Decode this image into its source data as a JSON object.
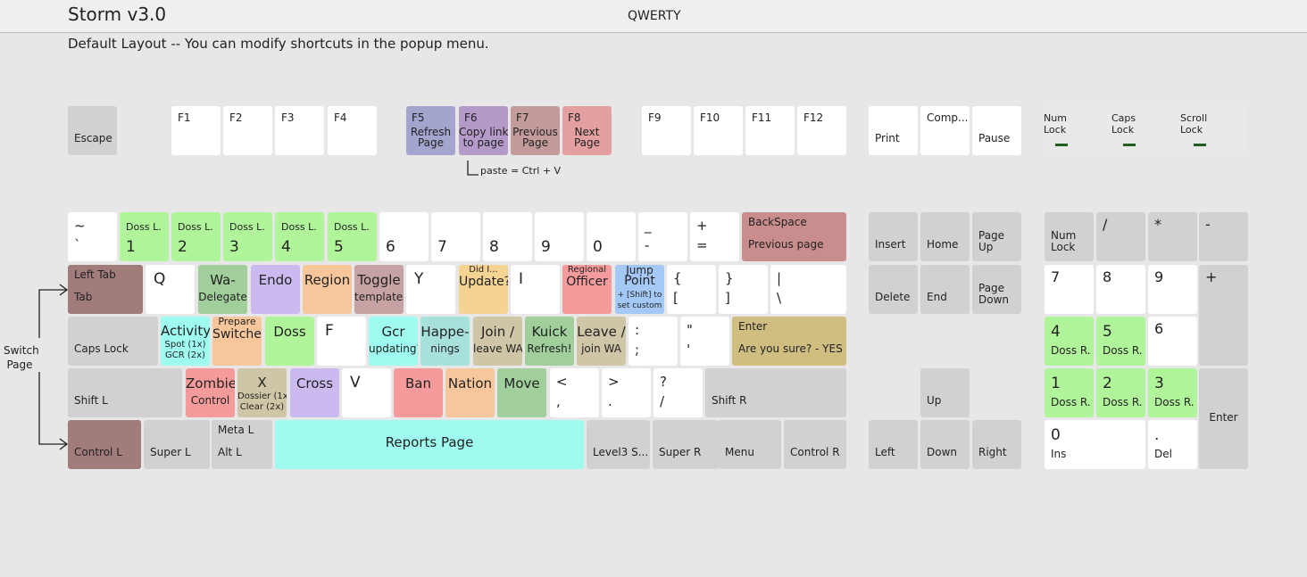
{
  "header": {
    "title": "Storm v3.0",
    "layout": "QWERTY",
    "subtitle": "Default Layout -- You can modify shortcuts in the popup menu."
  },
  "notes": {
    "paste": "paste = Ctrl + V",
    "switch_line1": "Switch",
    "switch_line2": "Page"
  },
  "colors": {
    "gray": "#d1d1d1",
    "white": "#ffffff",
    "green": "#b1f59b",
    "purple": "#cbbaf0",
    "orange": "#f7c79b",
    "rose": "#c6a2a2",
    "brown": "#a27b7b",
    "yellow": "#f4d393",
    "salmon": "#f59b9b",
    "blue": "#a5c9f7",
    "khaki": "#cfbe80",
    "teal": "#a6e1dc",
    "cyan": "#9ffaf0",
    "sage": "#a0cf9b",
    "f5": "#a3a5cf",
    "f6": "#b39ac9",
    "f7": "#c49b9b",
    "f8": "#e4a0a0",
    "backspace": "#c98d8d",
    "tan": "#cfc6a8",
    "mint": "#a5dec0"
  },
  "lock_indicators": [
    {
      "line1": "Num",
      "line2": "Lock"
    },
    {
      "line1": "Caps",
      "line2": "Lock"
    },
    {
      "line1": "Scroll",
      "line2": "Lock"
    }
  ],
  "keys": [
    {
      "id": "escape",
      "c": "gray",
      "t": [
        "Escape"
      ]
    },
    {
      "id": "f1",
      "c": "white",
      "t": [
        "F1"
      ]
    },
    {
      "id": "f2",
      "c": "white",
      "t": [
        "F2"
      ]
    },
    {
      "id": "f3",
      "c": "white",
      "t": [
        "F3"
      ]
    },
    {
      "id": "f4",
      "c": "white",
      "t": [
        "F4"
      ]
    },
    {
      "id": "f5",
      "c": "f5",
      "t": [
        "F5",
        "Refresh",
        "Page"
      ]
    },
    {
      "id": "f6",
      "c": "f6",
      "t": [
        "F6",
        "Copy link",
        "to page"
      ]
    },
    {
      "id": "f7",
      "c": "f7",
      "t": [
        "F7",
        "Previous",
        "Page"
      ]
    },
    {
      "id": "f8",
      "c": "f8",
      "t": [
        "F8",
        "Next",
        "Page"
      ]
    },
    {
      "id": "f9",
      "c": "white",
      "t": [
        "F9"
      ]
    },
    {
      "id": "f10",
      "c": "white",
      "t": [
        "F10"
      ]
    },
    {
      "id": "f11",
      "c": "white",
      "t": [
        "F11"
      ]
    },
    {
      "id": "f12",
      "c": "white",
      "t": [
        "F12"
      ]
    },
    {
      "id": "print",
      "c": "white",
      "t": [
        "Print"
      ]
    },
    {
      "id": "compose",
      "c": "white",
      "t": [
        "Comp..."
      ]
    },
    {
      "id": "pause",
      "c": "white",
      "t": [
        "Pause"
      ]
    },
    {
      "id": "tilde",
      "c": "white",
      "t": [
        "~",
        "`"
      ]
    },
    {
      "id": "digit-1",
      "c": "green",
      "t": [
        "Doss L.",
        "1"
      ]
    },
    {
      "id": "digit-2",
      "c": "green",
      "t": [
        "Doss L.",
        "2"
      ]
    },
    {
      "id": "digit-3",
      "c": "green",
      "t": [
        "Doss L.",
        "3"
      ]
    },
    {
      "id": "digit-4",
      "c": "green",
      "t": [
        "Doss L.",
        "4"
      ]
    },
    {
      "id": "digit-5",
      "c": "green",
      "t": [
        "Doss L.",
        "5"
      ]
    },
    {
      "id": "digit-6",
      "c": "white",
      "t": [
        "6"
      ]
    },
    {
      "id": "digit-7",
      "c": "white",
      "t": [
        "7"
      ]
    },
    {
      "id": "digit-8",
      "c": "white",
      "t": [
        "8"
      ]
    },
    {
      "id": "digit-9",
      "c": "white",
      "t": [
        "9"
      ]
    },
    {
      "id": "digit-0",
      "c": "white",
      "t": [
        "0"
      ]
    },
    {
      "id": "minus",
      "c": "white",
      "t": [
        "_",
        "-"
      ]
    },
    {
      "id": "equals",
      "c": "white",
      "t": [
        "+",
        "="
      ]
    },
    {
      "id": "backspace",
      "c": "backspace",
      "t": [
        "BackSpace",
        "Previous page"
      ]
    },
    {
      "id": "tab",
      "c": "brown",
      "t": [
        "Left Tab",
        "Tab"
      ]
    },
    {
      "id": "q",
      "c": "white",
      "t": [
        "Q"
      ]
    },
    {
      "id": "w",
      "c": "sage",
      "t": [
        "Wa-",
        "Delegate"
      ]
    },
    {
      "id": "e",
      "c": "purple",
      "t": [
        "Endo"
      ]
    },
    {
      "id": "r",
      "c": "orange",
      "t": [
        "Region"
      ]
    },
    {
      "id": "t",
      "c": "rose",
      "t": [
        "Toggle",
        "templates"
      ]
    },
    {
      "id": "y",
      "c": "white",
      "t": [
        "Y"
      ]
    },
    {
      "id": "u",
      "c": "yellow",
      "t": [
        "Did I...",
        "Update?"
      ]
    },
    {
      "id": "i",
      "c": "white",
      "t": [
        "I"
      ]
    },
    {
      "id": "o",
      "c": "salmon",
      "t": [
        "Regional",
        "Officer"
      ]
    },
    {
      "id": "p",
      "c": "blue",
      "t": [
        "Jump",
        "Point",
        "+ [Shift] to",
        "set custom"
      ]
    },
    {
      "id": "lbracket",
      "c": "white",
      "t": [
        "{",
        "["
      ]
    },
    {
      "id": "rbracket",
      "c": "white",
      "t": [
        "}",
        "]"
      ]
    },
    {
      "id": "backslash",
      "c": "white",
      "t": [
        "|",
        "\\"
      ]
    },
    {
      "id": "capslock",
      "c": "gray",
      "t": [
        "Caps Lock"
      ]
    },
    {
      "id": "a",
      "c": "cyan",
      "t": [
        "Activity",
        "Spot (1x)",
        "GCR (2x)"
      ]
    },
    {
      "id": "s",
      "c": "orange",
      "t": [
        "Prepare",
        "Switcher"
      ]
    },
    {
      "id": "d",
      "c": "green",
      "t": [
        "Doss"
      ]
    },
    {
      "id": "f",
      "c": "white",
      "t": [
        "F"
      ]
    },
    {
      "id": "g",
      "c": "cyan",
      "t": [
        "Gcr",
        "updating?"
      ]
    },
    {
      "id": "h",
      "c": "teal",
      "t": [
        "Happe-",
        "nings"
      ]
    },
    {
      "id": "j",
      "c": "tan",
      "t": [
        "Join /",
        "leave WA"
      ]
    },
    {
      "id": "k",
      "c": "sage",
      "t": [
        "Kuick",
        "Refresh!"
      ]
    },
    {
      "id": "l",
      "c": "tan",
      "t": [
        "Leave /",
        "join WA"
      ]
    },
    {
      "id": "semicolon",
      "c": "white",
      "t": [
        ":",
        ";"
      ]
    },
    {
      "id": "quote",
      "c": "white",
      "t": [
        "\"",
        "'"
      ]
    },
    {
      "id": "enter",
      "c": "khaki",
      "t": [
        "Enter",
        "Are you sure? - YES"
      ]
    },
    {
      "id": "shift-l",
      "c": "gray",
      "t": [
        "Shift L"
      ]
    },
    {
      "id": "z",
      "c": "salmon",
      "t": [
        "Zombie",
        "Control"
      ]
    },
    {
      "id": "x",
      "c": "tan",
      "t": [
        "X",
        "Dossier (1x)",
        "Clear (2x)"
      ]
    },
    {
      "id": "c",
      "c": "purple",
      "t": [
        "Cross"
      ]
    },
    {
      "id": "v",
      "c": "white",
      "t": [
        "V"
      ]
    },
    {
      "id": "b",
      "c": "salmon",
      "t": [
        "Ban"
      ]
    },
    {
      "id": "n",
      "c": "orange",
      "t": [
        "Nation"
      ]
    },
    {
      "id": "m",
      "c": "sage",
      "t": [
        "Move"
      ]
    },
    {
      "id": "comma",
      "c": "white",
      "t": [
        "<",
        ","
      ]
    },
    {
      "id": "period",
      "c": "white",
      "t": [
        ">",
        "."
      ]
    },
    {
      "id": "slash",
      "c": "white",
      "t": [
        "?",
        "/"
      ]
    },
    {
      "id": "shift-r",
      "c": "gray",
      "t": [
        "Shift R"
      ]
    },
    {
      "id": "control-l",
      "c": "brown",
      "t": [
        "Control L"
      ]
    },
    {
      "id": "super-l",
      "c": "gray",
      "t": [
        "Super L"
      ]
    },
    {
      "id": "alt-l",
      "c": "gray",
      "t": [
        "Meta L",
        "Alt L"
      ]
    },
    {
      "id": "space",
      "c": "cyan",
      "t": [
        "Reports Page"
      ]
    },
    {
      "id": "level3",
      "c": "gray",
      "t": [
        "Level3 S..."
      ]
    },
    {
      "id": "super-r",
      "c": "gray",
      "t": [
        "Super R"
      ]
    },
    {
      "id": "menu",
      "c": "gray",
      "t": [
        "Menu"
      ]
    },
    {
      "id": "control-r",
      "c": "gray",
      "t": [
        "Control R"
      ]
    },
    {
      "id": "insert",
      "c": "gray",
      "t": [
        "Insert"
      ]
    },
    {
      "id": "home",
      "c": "gray",
      "t": [
        "Home"
      ]
    },
    {
      "id": "pageup",
      "c": "gray",
      "t": [
        "Page",
        "Up"
      ]
    },
    {
      "id": "delete",
      "c": "gray",
      "t": [
        "Delete"
      ]
    },
    {
      "id": "end",
      "c": "gray",
      "t": [
        "End"
      ]
    },
    {
      "id": "pagedown",
      "c": "gray",
      "t": [
        "Page",
        "Down"
      ]
    },
    {
      "id": "arrow-up",
      "c": "gray",
      "t": [
        "Up"
      ]
    },
    {
      "id": "arrow-left",
      "c": "gray",
      "t": [
        "Left"
      ]
    },
    {
      "id": "arrow-down",
      "c": "gray",
      "t": [
        "Down"
      ]
    },
    {
      "id": "arrow-right",
      "c": "gray",
      "t": [
        "Right"
      ]
    },
    {
      "id": "numlock",
      "c": "gray",
      "t": [
        "Num",
        "Lock"
      ]
    },
    {
      "id": "kp-divide",
      "c": "gray",
      "t": [
        "/"
      ]
    },
    {
      "id": "kp-multiply",
      "c": "gray",
      "t": [
        "*"
      ]
    },
    {
      "id": "kp-minus",
      "c": "gray",
      "t": [
        "-"
      ]
    },
    {
      "id": "kp-7",
      "c": "white",
      "t": [
        "7"
      ]
    },
    {
      "id": "kp-8",
      "c": "white",
      "t": [
        "8"
      ]
    },
    {
      "id": "kp-9",
      "c": "white",
      "t": [
        "9"
      ]
    },
    {
      "id": "kp-plus",
      "c": "gray",
      "t": [
        "+"
      ]
    },
    {
      "id": "kp-4",
      "c": "green",
      "t": [
        "4",
        "Doss R."
      ]
    },
    {
      "id": "kp-5",
      "c": "green",
      "t": [
        "5",
        "Doss R."
      ]
    },
    {
      "id": "kp-6",
      "c": "white",
      "t": [
        "6"
      ]
    },
    {
      "id": "kp-1",
      "c": "green",
      "t": [
        "1",
        "Doss R."
      ]
    },
    {
      "id": "kp-2",
      "c": "green",
      "t": [
        "2",
        "Doss R."
      ]
    },
    {
      "id": "kp-3",
      "c": "green",
      "t": [
        "3",
        "Doss R."
      ]
    },
    {
      "id": "kp-enter",
      "c": "gray",
      "t": [
        "Enter"
      ]
    },
    {
      "id": "kp-0",
      "c": "white",
      "t": [
        "0",
        "Ins"
      ]
    },
    {
      "id": "kp-decimal",
      "c": "white",
      "t": [
        ".",
        "Del"
      ]
    }
  ]
}
